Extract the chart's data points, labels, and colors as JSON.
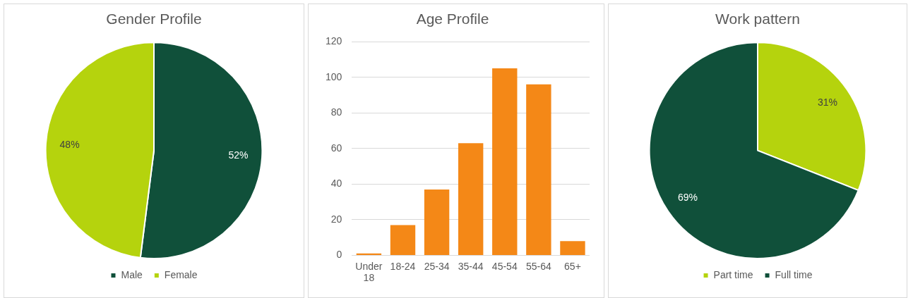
{
  "chart_data": [
    {
      "type": "pie",
      "title": "Gender Profile",
      "categories": [
        "Male",
        "Female"
      ],
      "values": [
        52,
        48
      ],
      "colors": [
        "#10503a",
        "#b5d30d"
      ],
      "value_labels": [
        "52%",
        "48%"
      ],
      "legend": "bottom"
    },
    {
      "type": "bar",
      "title": "Age Profile",
      "categories": [
        "Under 18",
        "18-24",
        "25-34",
        "35-44",
        "45-54",
        "55-64",
        "65+"
      ],
      "values": [
        1,
        17,
        37,
        63,
        105,
        96,
        8
      ],
      "color": "#f48817",
      "ylim": [
        0,
        120
      ],
      "yticks": [
        0,
        20,
        40,
        60,
        80,
        100,
        120
      ],
      "grid": "y",
      "legend": false
    },
    {
      "type": "pie",
      "title": "Work pattern",
      "categories": [
        "Part time",
        "Full time"
      ],
      "values": [
        31,
        69
      ],
      "colors": [
        "#b5d30d",
        "#10503a"
      ],
      "value_labels": [
        "31%",
        "69%"
      ],
      "legend": "bottom"
    }
  ]
}
